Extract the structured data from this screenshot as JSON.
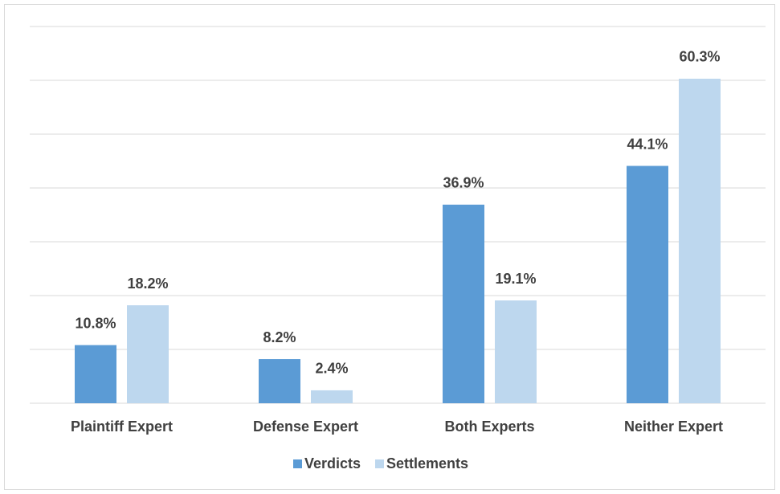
{
  "chart_data": {
    "type": "bar",
    "categories": [
      "Plaintiff Expert",
      "Defense Expert",
      "Both Experts",
      "Neither Expert"
    ],
    "series": [
      {
        "name": "Verdicts",
        "color": "#5b9bd5",
        "values": [
          10.8,
          8.2,
          36.9,
          44.1
        ],
        "value_labels": [
          "10.8%",
          "8.2%",
          "36.9%",
          "44.1%"
        ]
      },
      {
        "name": "Settlements",
        "color": "#bdd7ee",
        "values": [
          18.2,
          2.4,
          19.1,
          60.3
        ],
        "value_labels": [
          "18.2%",
          "2.4%",
          "19.1%",
          "60.3%"
        ]
      }
    ],
    "ylim": [
      0,
      70
    ],
    "yticks": [
      0,
      10,
      20,
      30,
      40,
      50,
      60,
      70
    ],
    "grid": true,
    "legend": "bottom"
  }
}
